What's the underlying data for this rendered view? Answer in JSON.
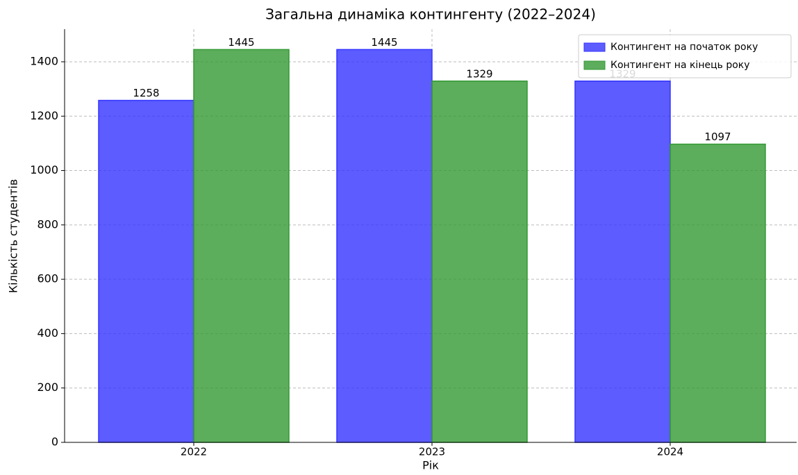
{
  "chart_data": {
    "type": "bar",
    "title": "Загальна динаміка контингенту (2022–2024)",
    "x_label": "Рік",
    "y_label": "Кількість студентів",
    "categories": [
      "2022",
      "2023",
      "2024"
    ],
    "series": [
      {
        "name": "Контингент на початок року",
        "color": "#3333ff",
        "values": [
          1258,
          1445,
          1329
        ]
      },
      {
        "name": "Контингент на кінець року",
        "color": "#339933",
        "values": [
          1445,
          1329,
          1097
        ]
      }
    ],
    "ylim": [
      0,
      1520
    ],
    "yticks": [
      0,
      200,
      400,
      600,
      800,
      1000,
      1200,
      1400
    ],
    "grid": true,
    "legend": "upper right"
  }
}
